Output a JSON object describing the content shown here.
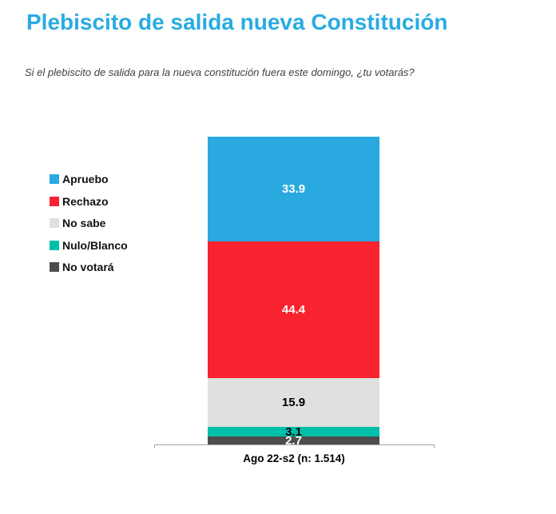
{
  "chart_data": {
    "type": "bar",
    "stacked": true,
    "orientation": "vertical",
    "title": "Plebiscito de salida nueva Constitución",
    "subtitle": "Si el plebiscito de salida para la nueva constitución fuera este domingo, ¿tu votarás?",
    "categories": [
      "Ago 22-s2 (n: 1.514)"
    ],
    "series": [
      {
        "name": "Apruebo",
        "values": [
          33.9
        ],
        "color": "#2AA9E0",
        "label_color": "#FFFFFF"
      },
      {
        "name": "Rechazo",
        "values": [
          44.4
        ],
        "color": "#F8232E",
        "label_color": "#FFFFFF"
      },
      {
        "name": "No sabe",
        "values": [
          15.9
        ],
        "color": "#E0E0E0",
        "label_color": "#000000"
      },
      {
        "name": "Nulo/Blanco",
        "values": [
          3.1
        ],
        "color": "#00BFA8",
        "label_color": "#000000"
      },
      {
        "name": "No votará",
        "values": [
          2.7
        ],
        "color": "#4D4D4D",
        "label_color": "#FFFFFF"
      }
    ],
    "legend_position": "left",
    "ylim": [
      0,
      100
    ],
    "grid": false,
    "title_color": "#29ABE2",
    "axis_color": "#A6A6A6"
  }
}
